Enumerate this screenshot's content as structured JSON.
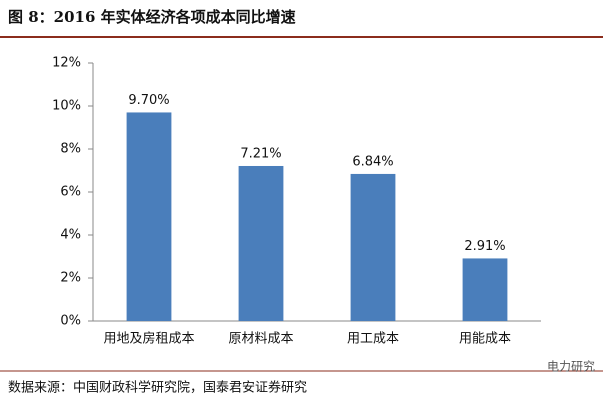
{
  "chart_data": {
    "type": "bar",
    "title": "图 8：2016 年实体经济各项成本同比增速",
    "categories": [
      "用地及房租成本",
      "原材料成本",
      "用工成本",
      "用能成本"
    ],
    "values": [
      9.7,
      7.21,
      6.84,
      2.91
    ],
    "value_labels": [
      "9.70%",
      "7.21%",
      "6.84%",
      "2.91%"
    ],
    "color": "#4a7ebb",
    "ylim": [
      0,
      12
    ],
    "yticks": [
      {
        "value": 0,
        "label": "0%"
      },
      {
        "value": 2,
        "label": "2%"
      },
      {
        "value": 4,
        "label": "4%"
      },
      {
        "value": 6,
        "label": "6%"
      },
      {
        "value": 8,
        "label": "8%"
      },
      {
        "value": 10,
        "label": "10%"
      },
      {
        "value": 12,
        "label": "12%"
      }
    ],
    "grid": false,
    "source": "数据来源：中国财政科学研究院，国泰君安证券研究",
    "watermark": "电力研究"
  }
}
